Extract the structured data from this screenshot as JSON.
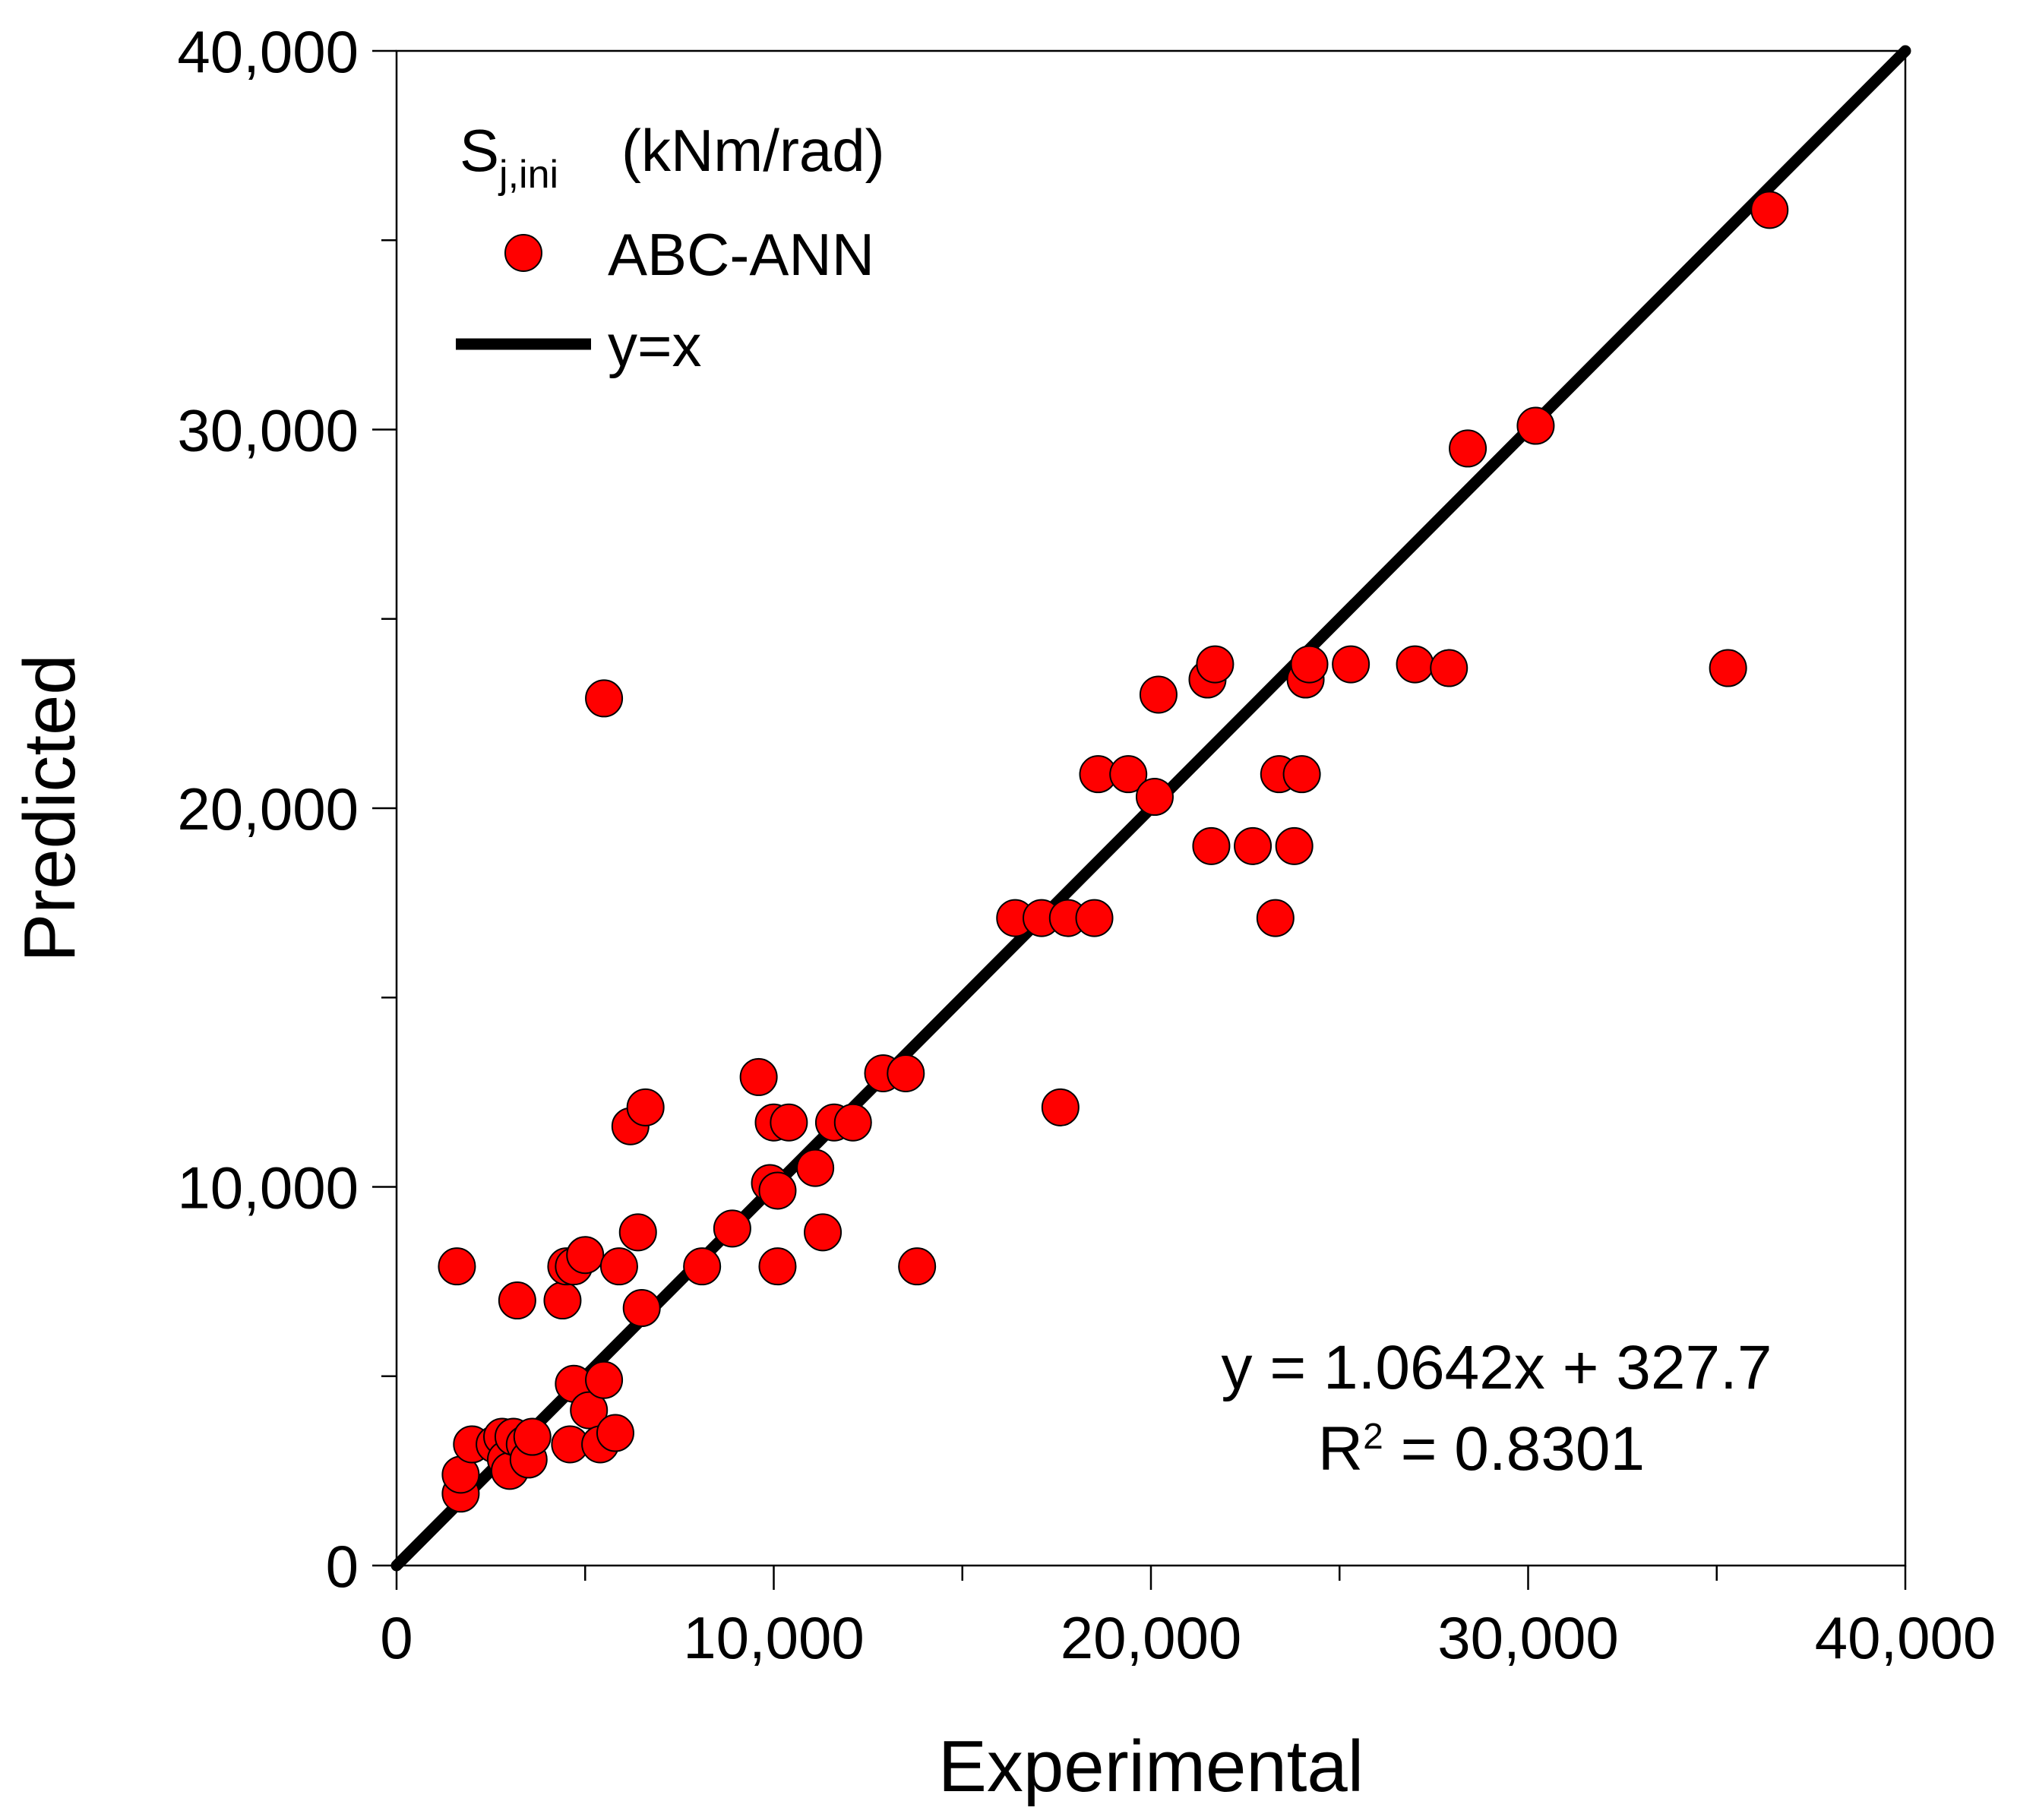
{
  "chart_data": {
    "type": "scatter",
    "title": "",
    "xlabel": "Experimental",
    "ylabel": "Predicted",
    "xlim": [
      0,
      40000
    ],
    "ylim": [
      0,
      40000
    ],
    "x_ticks": [
      0,
      10000,
      20000,
      30000,
      40000
    ],
    "x_tick_labels": [
      "0",
      "10,000",
      "20,000",
      "30,000",
      "40,000"
    ],
    "y_ticks": [
      0,
      10000,
      20000,
      30000,
      40000
    ],
    "y_tick_labels": [
      "0",
      "10,000",
      "20,000",
      "30,000",
      "40,000"
    ],
    "grid": false,
    "legend": {
      "placement": "top-left",
      "title_main": "S",
      "title_sub": "j,ini",
      "title_unit": "(kNm/rad)",
      "entries": [
        {
          "label": "ABC-ANN",
          "marker": "circle",
          "color": "#ff0000"
        },
        {
          "label": "y=x",
          "marker": "line",
          "color": "#000000"
        }
      ]
    },
    "series": [
      {
        "name": "ABC-ANN",
        "color": "#ff0000",
        "points": [
          [
            1600,
            7900
          ],
          [
            1700,
            1900
          ],
          [
            1700,
            2400
          ],
          [
            2000,
            3200
          ],
          [
            2600,
            3200
          ],
          [
            2800,
            3400
          ],
          [
            2900,
            2800
          ],
          [
            3000,
            2500
          ],
          [
            3100,
            3400
          ],
          [
            3200,
            7000
          ],
          [
            3400,
            3200
          ],
          [
            3500,
            2800
          ],
          [
            3600,
            3400
          ],
          [
            4400,
            7000
          ],
          [
            4500,
            7900
          ],
          [
            4600,
            3200
          ],
          [
            4700,
            4800
          ],
          [
            4700,
            7900
          ],
          [
            5000,
            8200
          ],
          [
            5100,
            4100
          ],
          [
            5400,
            3200
          ],
          [
            5500,
            4900
          ],
          [
            5500,
            22900
          ],
          [
            5800,
            3500
          ],
          [
            5900,
            7900
          ],
          [
            6200,
            11600
          ],
          [
            6400,
            8800
          ],
          [
            6500,
            6800
          ],
          [
            6600,
            12100
          ],
          [
            8100,
            7900
          ],
          [
            8900,
            8900
          ],
          [
            9600,
            12900
          ],
          [
            9900,
            10100
          ],
          [
            10000,
            11700
          ],
          [
            10100,
            9900
          ],
          [
            10100,
            7900
          ],
          [
            10400,
            11700
          ],
          [
            11100,
            10500
          ],
          [
            11300,
            8800
          ],
          [
            11600,
            11700
          ],
          [
            12100,
            11700
          ],
          [
            12900,
            13000
          ],
          [
            13500,
            13000
          ],
          [
            13800,
            7900
          ],
          [
            16400,
            17100
          ],
          [
            17100,
            17100
          ],
          [
            17600,
            12100
          ],
          [
            17800,
            17100
          ],
          [
            18500,
            17100
          ],
          [
            18600,
            20900
          ],
          [
            19400,
            20900
          ],
          [
            20100,
            20300
          ],
          [
            20200,
            23000
          ],
          [
            21500,
            23400
          ],
          [
            21600,
            19000
          ],
          [
            21700,
            23800
          ],
          [
            22700,
            19000
          ],
          [
            23300,
            17100
          ],
          [
            23400,
            20900
          ],
          [
            23800,
            19000
          ],
          [
            24000,
            20900
          ],
          [
            24100,
            23400
          ],
          [
            24200,
            23800
          ],
          [
            25300,
            23800
          ],
          [
            27000,
            23800
          ],
          [
            27900,
            23700
          ],
          [
            28400,
            29500
          ],
          [
            30200,
            30100
          ],
          [
            35300,
            23700
          ],
          [
            36400,
            35800
          ]
        ]
      },
      {
        "name": "y=x",
        "color": "#000000",
        "line": [
          [
            0,
            0
          ],
          [
            40000,
            40000
          ]
        ]
      }
    ],
    "annotations": {
      "equation": "y = 1.0642x + 327.7",
      "r2_label": "R",
      "r2_sup": "2",
      "r2_value": " = 0.8301"
    }
  }
}
